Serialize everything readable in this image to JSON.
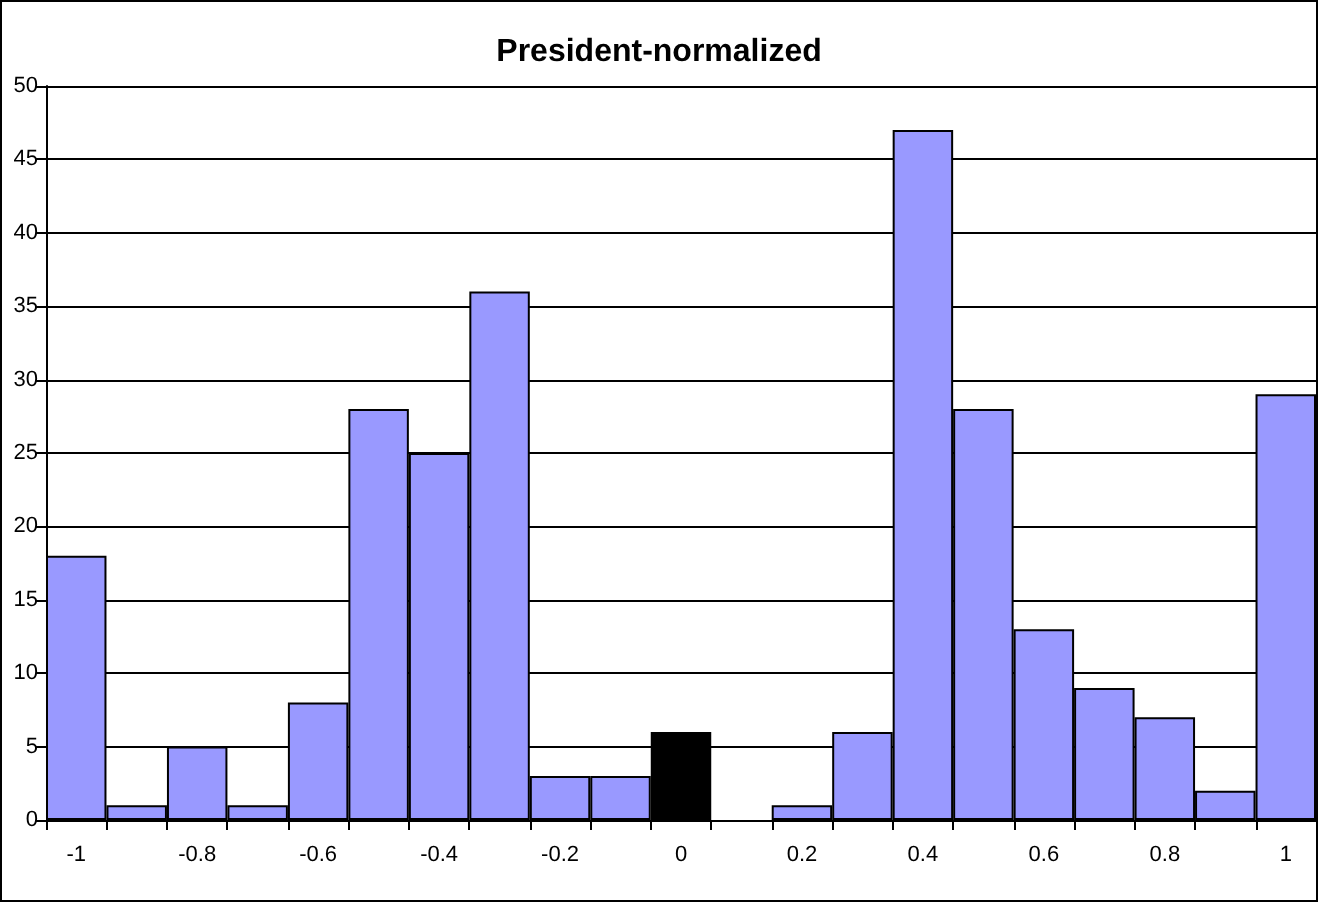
{
  "chart_data": {
    "type": "bar",
    "title": "President-normalized",
    "categories": [
      "-1",
      null,
      "-0.8",
      null,
      "-0.6",
      null,
      "-0.4",
      null,
      "-0.2",
      null,
      "0",
      null,
      "0.2",
      null,
      "0.4",
      null,
      "0.6",
      null,
      "0.8",
      null,
      "1"
    ],
    "values": [
      18,
      1,
      5,
      1,
      8,
      28,
      25,
      36,
      3,
      3,
      6,
      0,
      1,
      6,
      47,
      28,
      13,
      9,
      7,
      2,
      29
    ],
    "colors": [
      "#9999ff",
      "#9999ff",
      "#9999ff",
      "#9999ff",
      "#9999ff",
      "#9999ff",
      "#9999ff",
      "#9999ff",
      "#9999ff",
      "#9999ff",
      "#000000",
      "#9999ff",
      "#9999ff",
      "#9999ff",
      "#9999ff",
      "#9999ff",
      "#9999ff",
      "#9999ff",
      "#9999ff",
      "#9999ff",
      "#9999ff"
    ],
    "ylim": [
      0,
      50
    ],
    "yticks": [
      0,
      5,
      10,
      15,
      20,
      25,
      30,
      35,
      40,
      45,
      50
    ],
    "grid": "y"
  }
}
